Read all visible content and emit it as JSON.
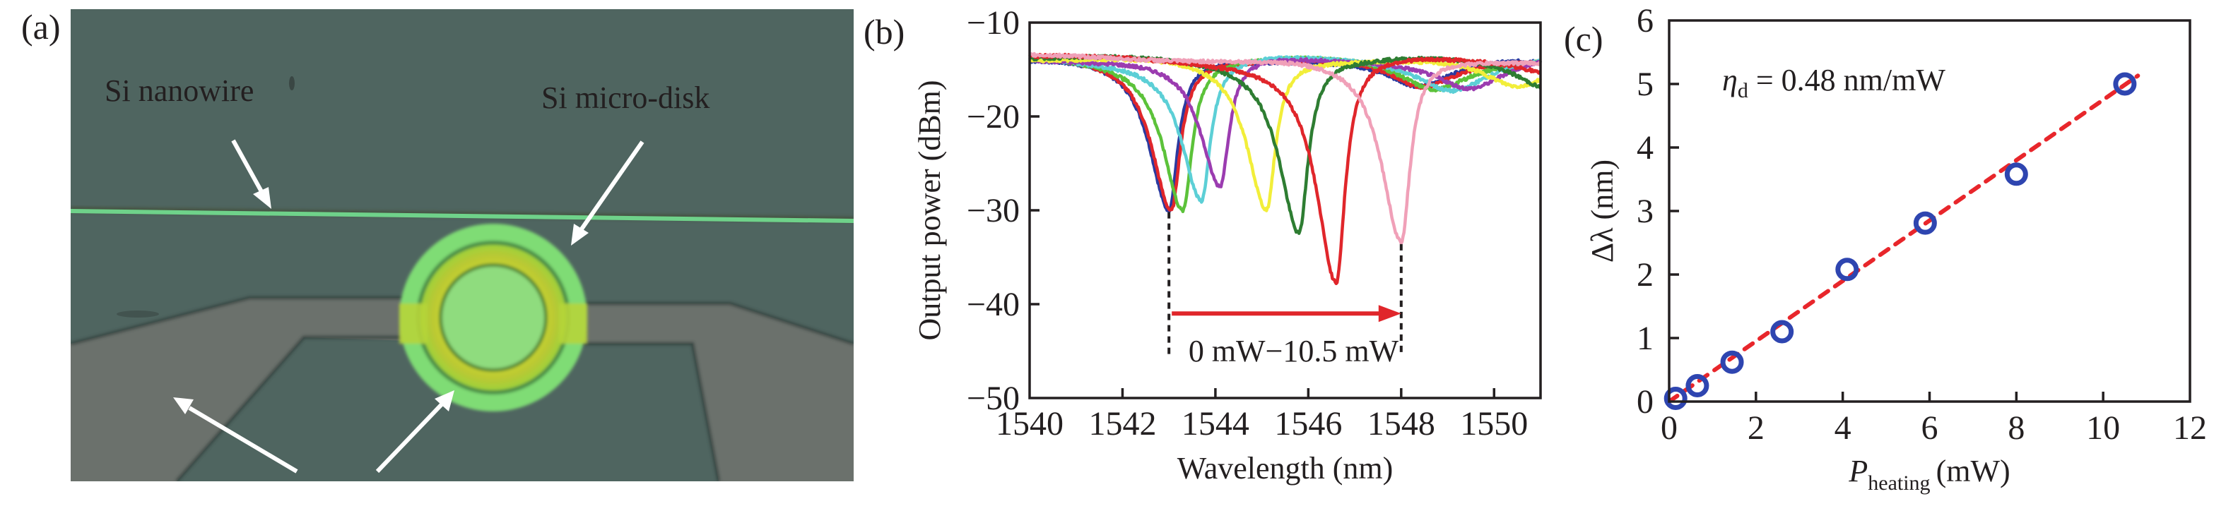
{
  "panels": {
    "a": {
      "label": "(a)",
      "annotations": [
        {
          "id": "nanowire",
          "text": "Si nanowire"
        },
        {
          "id": "microdisk",
          "text": "Si micro-disk"
        }
      ],
      "colors": {
        "substrate": "#4f6560",
        "heater_pad": "#6b716c",
        "waveguide": "#6fd28a",
        "disk_outer": "#7fdc74",
        "disk_ring": "#b8d62a",
        "disk_inner": "#8fdc7e",
        "arrow": "#ffffff",
        "text": "#ffffff"
      }
    },
    "b": {
      "label": "(b)"
    },
    "c": {
      "label": "(c)"
    }
  },
  "chart_data": [
    {
      "panel": "b",
      "type": "line",
      "title": "",
      "xlabel": "Wavelength (nm)",
      "ylabel": "Output power (dBm)",
      "xlim": [
        1540,
        1551
      ],
      "ylim": [
        -50,
        -10
      ],
      "xticks": [
        1540,
        1542,
        1544,
        1546,
        1548,
        1550
      ],
      "xtick_labels": [
        "1540",
        "1542",
        "1544",
        "1546",
        "1548",
        "1550"
      ],
      "yticks": [
        -10,
        -20,
        -30,
        -40,
        -50
      ],
      "ytick_labels": [
        "−10",
        "−20",
        "−30",
        "−40",
        "−50"
      ],
      "grid": false,
      "legend": null,
      "baseline_dbm": -13.6,
      "series": [
        {
          "name": "blue",
          "color": "#2b3aa0",
          "dip_wavelength": 1543.0,
          "dip_power": -30.0
        },
        {
          "name": "red-1",
          "color": "#e0262b",
          "dip_wavelength": 1543.05,
          "dip_power": -29.8
        },
        {
          "name": "light-green",
          "color": "#5cc23a",
          "dip_wavelength": 1543.3,
          "dip_power": -29.7
        },
        {
          "name": "cyan",
          "color": "#5ccfd6",
          "dip_wavelength": 1543.7,
          "dip_power": -28.9
        },
        {
          "name": "purple",
          "color": "#9b3cb0",
          "dip_wavelength": 1544.1,
          "dip_power": -27.6
        },
        {
          "name": "yellow",
          "color": "#f2ee3a",
          "dip_wavelength": 1545.1,
          "dip_power": -29.8
        },
        {
          "name": "dark-green",
          "color": "#2e7d32",
          "dip_wavelength": 1545.8,
          "dip_power": -32.1
        },
        {
          "name": "red-2",
          "color": "#e0262b",
          "dip_wavelength": 1546.6,
          "dip_power": -37.7
        },
        {
          "name": "pink",
          "color": "#f0a0b8",
          "dip_wavelength": 1548.0,
          "dip_power": -33.4
        }
      ],
      "annotations": {
        "shift_text": "0 mW−10.5 mW",
        "arrow_from_nm": 1543.0,
        "arrow_to_nm": 1548.0,
        "arrow_level_dbm": -41,
        "arrow_color": "#e0262b",
        "marker_lines_nm": [
          1543.0,
          1548.0
        ]
      }
    },
    {
      "panel": "c",
      "type": "scatter",
      "title": "",
      "xlabel_main": "P",
      "xlabel_sub": "heating",
      "xlabel_unit": "(mW)",
      "ylabel": "Δλ (nm)",
      "xlim": [
        0,
        12
      ],
      "ylim": [
        0,
        6
      ],
      "xticks": [
        0,
        2,
        4,
        6,
        8,
        10,
        12
      ],
      "xtick_labels": [
        "0",
        "2",
        "4",
        "6",
        "8",
        "10",
        "12"
      ],
      "yticks": [
        0,
        1,
        2,
        3,
        4,
        5,
        6
      ],
      "ytick_labels": [
        "0",
        "1",
        "2",
        "3",
        "4",
        "5",
        "6"
      ],
      "grid": false,
      "legend": null,
      "series": [
        {
          "name": "measured",
          "marker": "open-circle",
          "color": "#2e45b0",
          "x": [
            0.15,
            0.65,
            1.45,
            2.6,
            4.1,
            5.9,
            8.0,
            10.5
          ],
          "y": [
            0.05,
            0.25,
            0.62,
            1.1,
            2.08,
            2.81,
            3.58,
            5.0
          ]
        },
        {
          "name": "linear fit",
          "style": "dashed",
          "color": "#e8262b",
          "slope": 0.475,
          "x_range": [
            0,
            10.8
          ]
        }
      ],
      "annotation": {
        "symbol": "η",
        "subscript": "d",
        "text": " = 0.48 nm/mW"
      }
    }
  ]
}
